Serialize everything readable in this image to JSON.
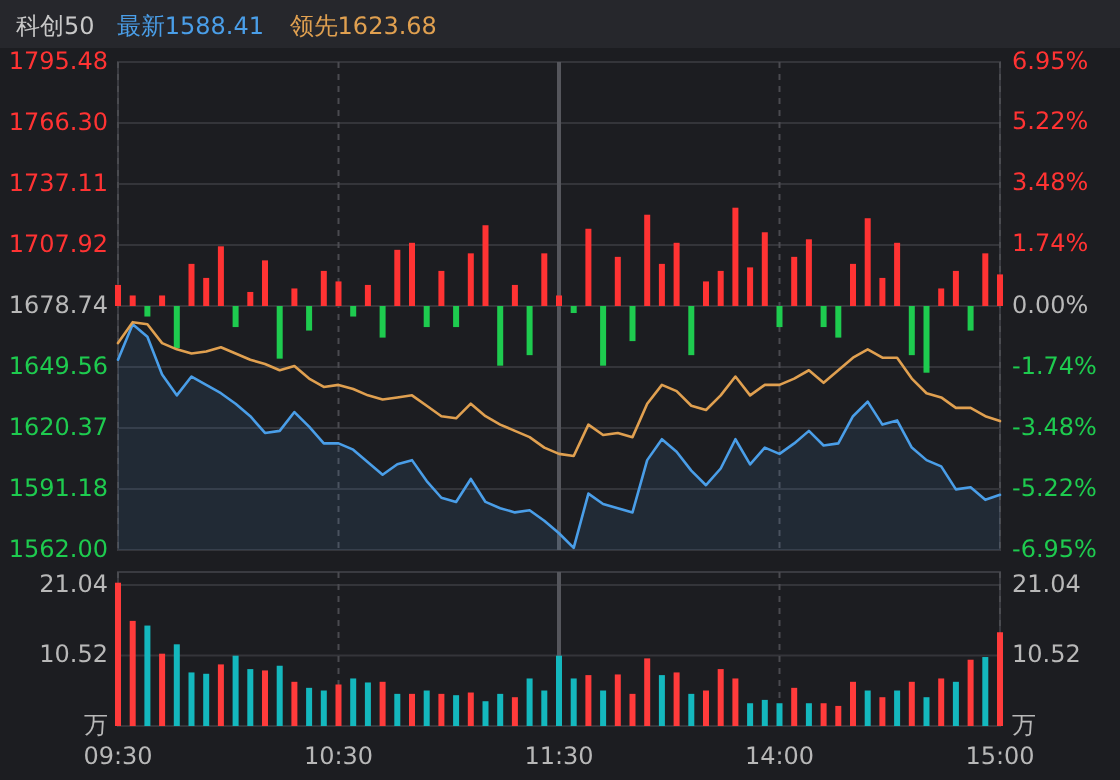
{
  "chart_data": [
    {
      "type": "line",
      "title": "科创50",
      "legend": "top left",
      "grid": true,
      "tick_labels": "y",
      "categories": [
        null,
        null,
        null,
        null,
        null,
        null,
        null,
        null,
        null,
        null,
        null,
        null,
        null,
        null,
        null,
        null,
        null,
        null,
        null,
        null,
        null,
        null,
        null,
        null,
        null,
        null,
        null,
        null,
        null,
        null,
        null,
        null,
        null,
        null,
        null,
        null,
        null,
        null,
        null,
        null,
        null,
        null,
        null,
        null,
        null,
        null,
        null,
        null,
        null,
        null,
        null,
        null,
        null,
        null,
        null,
        null,
        null,
        null,
        null,
        null,
        null
      ],
      "ylim": [
        1562,
        1795.48
      ],
      "yticks": [
        {
          "value": 1562,
          "label": "1562.00"
        },
        1591.18,
        1620.37,
        1649.56,
        1678.74,
        1707.92,
        1737.11,
        {
          "value": 1766.3,
          "label": "1766.30"
        },
        1795.48
      ],
      "y2lim": [
        -6.95,
        6.95
      ],
      "y2ticks": [
        {
          "value": -6.95,
          "label": "-6.95%"
        },
        {
          "value": -5.22,
          "label": "-5.22%"
        },
        {
          "value": -3.48,
          "label": "-3.48%"
        },
        {
          "value": -1.74,
          "label": "-1.74%"
        },
        {
          "value": 0,
          "label": "0.00%"
        },
        {
          "value": 1.74,
          "label": "1.74%"
        },
        {
          "value": 3.48,
          "label": "3.48%"
        },
        {
          "value": 5.22,
          "label": "5.22%"
        },
        {
          "value": 6.95,
          "label": "6.95%"
        }
      ],
      "series": [
        {
          "type": "bar",
          "axis": "y2",
          "color": "#ff3333",
          "values": [
            0.6,
            0.3,
            null,
            0.3,
            null,
            1.2,
            0.8,
            1.7,
            null,
            0.4,
            1.3,
            null,
            0.5,
            null,
            1.0,
            0.7,
            null,
            0.6,
            null,
            1.6,
            1.8,
            null,
            1.0,
            null,
            1.5,
            2.3,
            null,
            0.6,
            null,
            1.5,
            0.3,
            null,
            2.2,
            null,
            1.4,
            null,
            2.6,
            1.2,
            1.8,
            null,
            0.7,
            1.0,
            2.8,
            1.1,
            2.1,
            null,
            1.4,
            1.9,
            null,
            null,
            1.2,
            2.5,
            0.8,
            1.8,
            null,
            null,
            0.5,
            1.0,
            null,
            1.5,
            0.9
          ]
        },
        {
          "type": "bar",
          "axis": "y2",
          "color": "#1ecb4f",
          "values": [
            null,
            null,
            -0.3,
            null,
            -1.2,
            null,
            null,
            null,
            -0.6,
            null,
            null,
            -1.5,
            null,
            -0.7,
            null,
            null,
            -0.3,
            null,
            -0.9,
            null,
            null,
            -0.6,
            null,
            -0.6,
            null,
            null,
            -1.7,
            null,
            -1.4,
            null,
            null,
            -0.2,
            null,
            -1.7,
            null,
            -1.0,
            null,
            null,
            null,
            -1.4,
            null,
            null,
            null,
            null,
            null,
            -0.6,
            null,
            null,
            -0.6,
            -0.9,
            null,
            null,
            null,
            null,
            -1.4,
            -1.9,
            null,
            null,
            -0.7,
            null,
            null
          ]
        },
        {
          "type": "area",
          "name": "最新1588.41",
          "color": "#4a9ee8",
          "values": [
            1653,
            1670,
            1664,
            1646,
            1636,
            1645,
            1641,
            1637,
            1632,
            1626,
            1618,
            1619,
            1628,
            1621,
            1613,
            1613,
            1610,
            1604,
            1598,
            1603,
            1605,
            1595,
            1587,
            1585,
            1596,
            1585,
            1582,
            1580,
            1581,
            1576,
            1570,
            1563,
            1589,
            1584,
            1582,
            1580,
            1605,
            1615,
            1609,
            1600,
            1593,
            1601,
            1615,
            1603,
            1611,
            1608,
            1613,
            1619,
            1612,
            1613,
            1626,
            1633,
            1622,
            1624,
            1611,
            1605,
            1602,
            1591,
            1592,
            1586,
            1588.41
          ]
        },
        {
          "type": "line",
          "name": "领先1623.68",
          "color": "#e0a050",
          "values": [
            1661,
            1671,
            1670,
            1661,
            1658,
            1656,
            1657,
            1659,
            1656,
            1653,
            1651,
            1648,
            1650,
            1644,
            1640,
            1641,
            1639,
            1636,
            1634,
            1635,
            1636,
            1631,
            1626,
            1625,
            1632,
            1626,
            1622,
            1619,
            1616,
            1611,
            1608,
            1607,
            1622,
            1617,
            1618,
            1616,
            1632,
            1641,
            1638,
            1631,
            1629,
            1636,
            1645,
            1636,
            1641,
            1641,
            1644,
            1648,
            1642,
            1648,
            1654,
            1658,
            1654,
            1654,
            1644,
            1637,
            1635,
            1630,
            1630,
            1626,
            1623.68
          ]
        }
      ]
    },
    {
      "type": "bar",
      "grid": true,
      "categories": [
        "09:30",
        null,
        null,
        null,
        null,
        null,
        null,
        null,
        null,
        null,
        null,
        null,
        null,
        null,
        null,
        "10:30",
        null,
        null,
        null,
        null,
        null,
        null,
        null,
        null,
        null,
        null,
        null,
        null,
        null,
        null,
        "11:30",
        null,
        null,
        null,
        null,
        null,
        null,
        null,
        null,
        null,
        null,
        null,
        null,
        null,
        null,
        "14:00",
        null,
        null,
        null,
        null,
        null,
        null,
        null,
        null,
        null,
        null,
        null,
        null,
        null,
        null,
        "15:00"
      ],
      "ylim": [
        0,
        23
      ],
      "yticks": [
        {
          "value": 0,
          "label": "万"
        },
        10.52,
        21.04
      ],
      "y2lim": [
        0,
        23
      ],
      "y2ticks": [
        {
          "value": 0,
          "label": "万"
        },
        10.52,
        21.04
      ],
      "series": [
        {
          "color": "#ff3b3b",
          "values": [
            21.4,
            15.7,
            null,
            10.8,
            null,
            null,
            null,
            9.2,
            null,
            null,
            8.3,
            null,
            6.6,
            null,
            null,
            6.2,
            null,
            null,
            6.6,
            null,
            4.8,
            null,
            4.8,
            null,
            5,
            null,
            null,
            4.3,
            null,
            null,
            null,
            null,
            7.6,
            null,
            7.7,
            4.8,
            10.1,
            null,
            8,
            null,
            5.3,
            8.5,
            7.1,
            null,
            null,
            null,
            5.7,
            null,
            3.4,
            3,
            6.6,
            null,
            4.3,
            null,
            6.6,
            null,
            7.1,
            null,
            9.9,
            null,
            14
          ]
        },
        {
          "color": "#14b8be",
          "values": [
            null,
            null,
            15,
            null,
            12.2,
            8,
            7.8,
            null,
            10.5,
            8.5,
            null,
            9,
            null,
            5.7,
            5.3,
            null,
            7.1,
            6.5,
            null,
            4.8,
            null,
            5.3,
            null,
            4.6,
            null,
            3.7,
            4.8,
            null,
            7.1,
            5.3,
            10.5,
            7.1,
            null,
            5.3,
            null,
            null,
            null,
            7.6,
            null,
            4.8,
            null,
            null,
            null,
            3.4,
            3.9,
            3.4,
            null,
            3.4,
            null,
            null,
            null,
            5.3,
            null,
            5.3,
            null,
            4.3,
            null,
            6.6,
            null,
            10.3,
            null
          ]
        }
      ]
    }
  ]
}
